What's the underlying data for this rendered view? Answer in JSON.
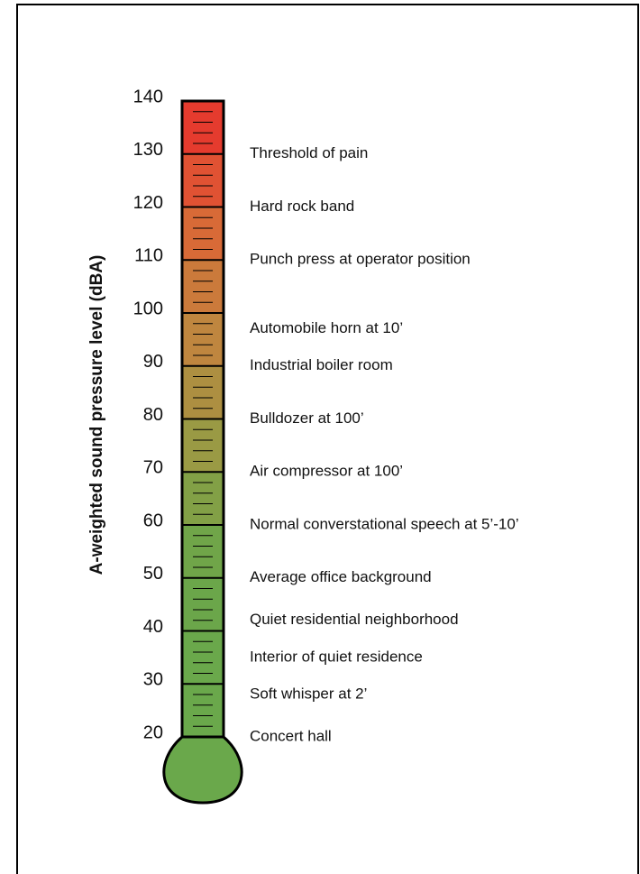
{
  "chart_data": {
    "type": "thermometer",
    "y_label": "A-weighted sound pressure level (dBA)",
    "ylim": [
      20,
      140
    ],
    "yticks": [
      20,
      30,
      40,
      50,
      60,
      70,
      80,
      90,
      100,
      110,
      120,
      130,
      140
    ],
    "segment_colors": [
      "#6aa84b",
      "#6aa84b",
      "#6ba64a",
      "#70a549",
      "#82a046",
      "#9a9a44",
      "#ad8f41",
      "#bf863f",
      "#cb7a3b",
      "#d86a37",
      "#e05233",
      "#e53b2e"
    ],
    "bulb_color": "#6aa84b",
    "annotations": [
      {
        "label": "Threshold of pain",
        "value": 130
      },
      {
        "label": "Hard rock band",
        "value": 120
      },
      {
        "label": "Punch press at operator position",
        "value": 110
      },
      {
        "label": "Automobile horn at 10’",
        "value": 97
      },
      {
        "label": "Industrial boiler room",
        "value": 90
      },
      {
        "label": "Bulldozer at 100’",
        "value": 80
      },
      {
        "label": "Air compressor at 100’",
        "value": 70
      },
      {
        "label": "Normal converstational speech at 5’-10’",
        "value": 60
      },
      {
        "label": "Average office background",
        "value": 50
      },
      {
        "label": "Quiet residential neighborhood",
        "value": 42
      },
      {
        "label": "Interior of quiet residence",
        "value": 35
      },
      {
        "label": "Soft whisper at 2’",
        "value": 28
      },
      {
        "label": "Concert hall",
        "value": 20
      }
    ]
  }
}
